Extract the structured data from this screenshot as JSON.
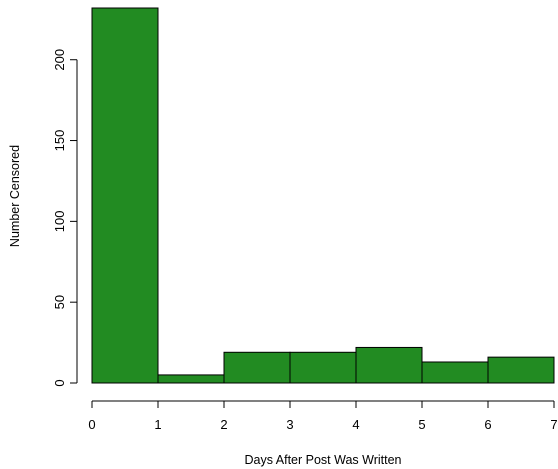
{
  "chart_data": {
    "type": "bar",
    "title": "",
    "xlabel": "Days After Post Was Written",
    "ylabel": "Number Censored",
    "bins": [
      {
        "start": 0,
        "end": 1,
        "value": 232
      },
      {
        "start": 1,
        "end": 2,
        "value": 5
      },
      {
        "start": 2,
        "end": 3,
        "value": 19
      },
      {
        "start": 3,
        "end": 4,
        "value": 19
      },
      {
        "start": 4,
        "end": 5,
        "value": 22
      },
      {
        "start": 5,
        "end": 6,
        "value": 13
      },
      {
        "start": 6,
        "end": 7,
        "value": 16
      }
    ],
    "xticks": [
      "0",
      "1",
      "2",
      "3",
      "4",
      "5",
      "6",
      "7"
    ],
    "yticks": [
      "0",
      "50",
      "100",
      "150",
      "200"
    ],
    "xlim": [
      0,
      7
    ],
    "ylim": [
      0,
      232
    ],
    "bar_color": "#228B22",
    "bar_edge_color": "#000000",
    "grid": false
  }
}
